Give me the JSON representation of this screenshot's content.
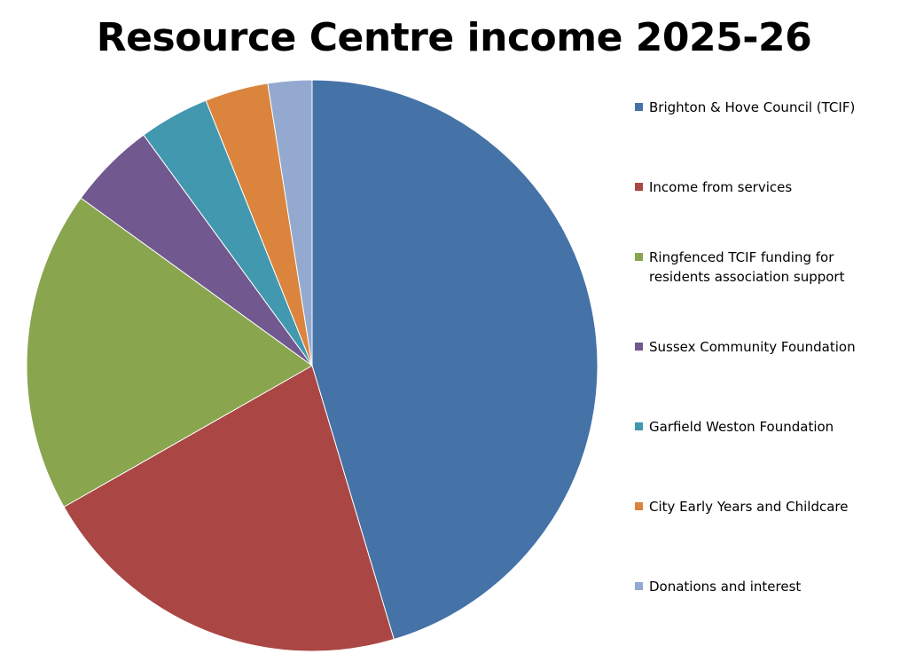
{
  "chart_data": {
    "type": "pie",
    "title": "Resource Centre income 2025-26",
    "legend_position": "right",
    "start_angle": "12 o'clock, clockwise",
    "slices": [
      {
        "label": "Brighton & Hove Council (TCIF)",
        "value": 45.6,
        "color": "#4572A7"
      },
      {
        "label": "Income from services",
        "value": 21.5,
        "color": "#AA4643"
      },
      {
        "label": "Ringfenced TCIF funding for residents association support",
        "value": 18.3,
        "color": "#89A54E"
      },
      {
        "label": "Sussex Community Foundation",
        "value": 5.0,
        "color": "#71588F"
      },
      {
        "label": "Garfield Weston Foundation",
        "value": 4.0,
        "color": "#4198AF"
      },
      {
        "label": "City Early Years and Childcare",
        "value": 3.6,
        "color": "#DB843D"
      },
      {
        "label": "Donations and interest",
        "value": 2.5,
        "color": "#93A9CF"
      }
    ]
  }
}
